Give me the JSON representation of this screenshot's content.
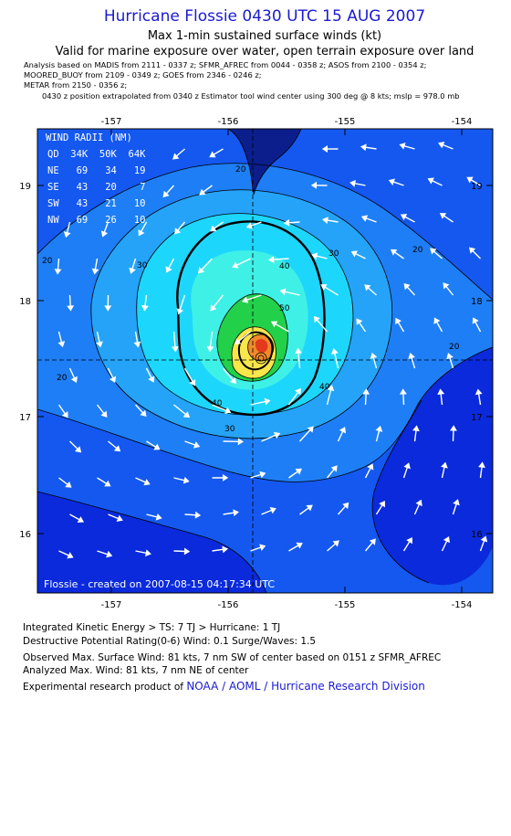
{
  "header": {
    "title": "Hurricane Flossie 0430 UTC 15 AUG 2007",
    "subtitle1": "Max 1-min sustained surface winds (kt)",
    "subtitle2": "Valid for marine exposure over water, open terrain exposure over land",
    "meta1": "Analysis based on   MADIS from 2111 - 0337 z;  SFMR_AFREC from 0044 - 0358 z;  ASOS from 2100 - 0354 z;",
    "meta2": "MOORED_BUOY from 2109 - 0349 z;  GOES from 2346 - 0246 z;",
    "meta3": "METAR from 2150 - 0356 z;",
    "meta4": "0430 z position extrapolated from 0340 z Estimator tool wind center using 300 deg @ 8 kts; mslp = 978.0 mb"
  },
  "map": {
    "lon_ticks": [
      "-157",
      "-156",
      "-155",
      "-154"
    ],
    "lat_ticks": [
      "19",
      "18",
      "17",
      "16"
    ],
    "lon_range": [
      -157.5,
      -153.8
    ],
    "lat_range": [
      15.5,
      19.5
    ],
    "center": {
      "lon": -155.63,
      "lat": 17.5
    },
    "contour_labels": [
      "20",
      "20",
      "20",
      "20",
      "20",
      "30",
      "30",
      "30",
      "40",
      "40",
      "40",
      "50"
    ],
    "wind_radii": {
      "title": "WIND RADII (NM)",
      "header": "QD  34K  50K  64K",
      "rows": [
        "NE   69   34   19",
        "SE   43   20    7",
        "SW   43   21   10",
        "NW   69   26   10"
      ]
    },
    "credit": "Flossie - created on 2007-08-15 04:17:34 UTC",
    "colors": {
      "deep_blue": "#0a2adb",
      "blue": "#1458f0",
      "mid_blue": "#1e7ef6",
      "light_blue": "#25a3f8",
      "cyan": "#1dd6fb",
      "aqua": "#3ff0e6",
      "green": "#22d04a",
      "yellow": "#f8e64a",
      "orange": "#f08a2a",
      "red": "#e33a1e",
      "land": "#0b1e8c"
    }
  },
  "footer": {
    "ike": "Integrated Kinetic Energy > TS: 7 TJ   > Hurricane: 1 TJ",
    "dpr": "Destructive Potential Rating(0-6)   Wind: 0.1 Surge/Waves: 1.5",
    "obs": "Observed Max. Surface Wind: 81 kts, 7 nm SW of center based on 0151 z SFMR_AFREC",
    "analyzed": "Analyzed Max. Wind: 81 kts, 7 nm NE of center",
    "credit_prefix": "Experimental research product of ",
    "credit_link": "NOAA / AOML / Hurricane Research Division"
  }
}
